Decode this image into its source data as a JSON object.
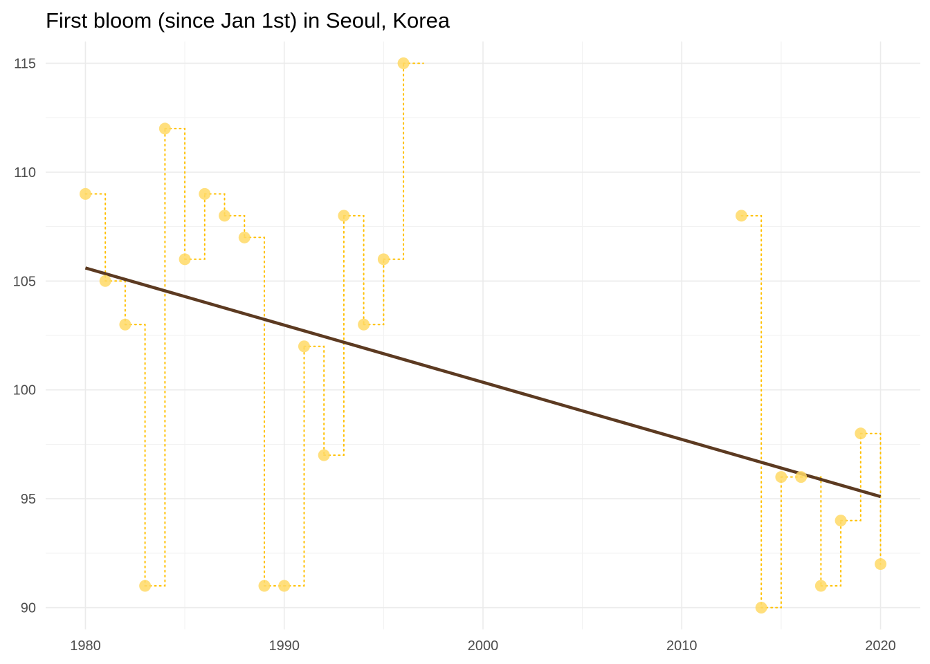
{
  "chart_data": {
    "type": "scatter",
    "title": "First bloom (since Jan 1st) in Seoul, Korea",
    "xlabel": "",
    "ylabel": "",
    "xlim": [
      1978,
      2022
    ],
    "ylim": [
      89,
      116
    ],
    "x_ticks": [
      1980,
      1990,
      2000,
      2010,
      2020
    ],
    "y_ticks": [
      90,
      95,
      100,
      105,
      110,
      115
    ],
    "grid": true,
    "points": {
      "x": [
        1980,
        1981,
        1982,
        1983,
        1984,
        1985,
        1986,
        1987,
        1988,
        1989,
        1990,
        1991,
        1992,
        1993,
        1994,
        1995,
        1996,
        2013,
        2014,
        2015,
        2016,
        2017,
        2018,
        2019,
        2020
      ],
      "y": [
        109,
        105,
        103,
        91,
        112,
        106,
        109,
        108,
        107,
        91,
        91,
        102,
        97,
        108,
        103,
        106,
        115,
        108,
        90,
        96,
        96,
        91,
        94,
        98,
        92
      ],
      "color": "#FFD966"
    },
    "step_line": {
      "style": "dotted",
      "color": "#FFC000"
    },
    "trend_line": {
      "type": "linear",
      "x": [
        1980,
        2020
      ],
      "y": [
        105.6,
        95.1
      ],
      "color": "#5C3A21"
    }
  }
}
